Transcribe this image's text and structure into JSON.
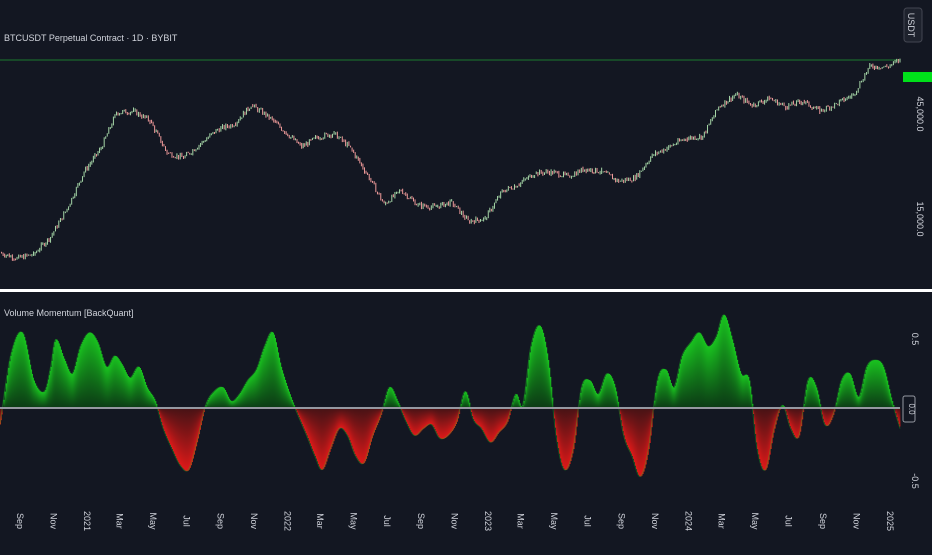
{
  "colors": {
    "background": "#131722",
    "candle_up": "#a5d6a7",
    "candle_down": "#ef9a9a",
    "osc_up": "#19c21f",
    "osc_down": "#e01919",
    "zero_line": "#9598a1",
    "price_line": "#1b7a2e",
    "text": "#d1d4dc",
    "separator": "#ffffff",
    "price_box": "#00e01a"
  },
  "price_pane": {
    "title": "BTCUSDT Perpetual Contract · 1D · BYBIT",
    "currency_badge": "USDT",
    "y_tick_labels": [
      "45,000.0",
      "15,000.0"
    ],
    "scale": "log"
  },
  "oscillator_pane": {
    "title": "Volume Momentum [BackQuant]",
    "y_tick_labels": [
      "0.5",
      "-0.5"
    ],
    "zero_badge": "0.0"
  },
  "chart_data": [
    {
      "type": "line",
      "pane": "price",
      "scale": "log",
      "series": [
        {
          "x": [
            "2020-08-01",
            "2020-09-01",
            "2020-10-01",
            "2020-11-01",
            "2020-12-01",
            "2021-01-01",
            "2021-02-01",
            "2021-03-01",
            "2021-04-01",
            "2021-05-01",
            "2021-06-01",
            "2021-07-01",
            "2021-08-01",
            "2021-09-01",
            "2021-10-01",
            "2021-11-01",
            "2021-12-01",
            "2022-01-01",
            "2022-02-01",
            "2022-03-01",
            "2022-04-01",
            "2022-05-01",
            "2022-06-01",
            "2022-07-01",
            "2022-08-01",
            "2022-09-01",
            "2022-10-01",
            "2022-11-01",
            "2022-12-01",
            "2023-01-01",
            "2023-02-01",
            "2023-03-01",
            "2023-04-01",
            "2023-05-01",
            "2023-06-01",
            "2023-07-01",
            "2023-08-01",
            "2023-09-01",
            "2023-10-01",
            "2023-11-01",
            "2023-12-01",
            "2024-01-01",
            "2024-02-01",
            "2024-03-01",
            "2024-04-01",
            "2024-05-01",
            "2024-06-01",
            "2024-07-01",
            "2024-08-01",
            "2024-09-01",
            "2024-10-01",
            "2024-11-01",
            "2024-12-01",
            "2025-01-01",
            "2025-01-25"
          ],
          "values": [
            11500,
            10800,
            11300,
            13800,
            19000,
            29000,
            38000,
            57000,
            58000,
            52000,
            36000,
            34000,
            40000,
            47000,
            50000,
            62000,
            55000,
            46000,
            38500,
            43000,
            45000,
            38000,
            28000,
            20000,
            23500,
            19800,
            19400,
            20500,
            16500,
            17000,
            23200,
            25000,
            28500,
            29000,
            27500,
            30000,
            29100,
            26000,
            27000,
            35000,
            38500,
            42500,
            43500,
            61000,
            70000,
            62000,
            67000,
            61000,
            65000,
            58000,
            63000,
            70000,
            97000,
            96000,
            104000
          ]
        }
      ],
      "reference_line": 104000
    },
    {
      "type": "area",
      "title": "Volume Momentum [BackQuant]",
      "ylim": [
        -0.5,
        0.5
      ],
      "zero_line": 0,
      "series": [
        {
          "x": [
            "2020-08-01",
            "2020-08-20",
            "2020-09-10",
            "2020-10-01",
            "2020-10-20",
            "2020-11-01",
            "2020-11-10",
            "2020-11-25",
            "2020-12-10",
            "2020-12-25",
            "2021-01-10",
            "2021-01-25",
            "2021-02-10",
            "2021-02-25",
            "2021-03-10",
            "2021-03-25",
            "2021-04-10",
            "2021-04-25",
            "2021-05-10",
            "2021-05-25",
            "2021-06-10",
            "2021-06-25",
            "2021-07-10",
            "2021-07-25",
            "2021-08-10",
            "2021-08-25",
            "2021-09-10",
            "2021-09-25",
            "2021-10-10",
            "2021-10-25",
            "2021-11-10",
            "2021-11-25",
            "2021-12-10",
            "2021-12-25",
            "2022-01-10",
            "2022-01-25",
            "2022-02-10",
            "2022-02-25",
            "2022-03-10",
            "2022-03-25",
            "2022-04-10",
            "2022-04-25",
            "2022-05-10",
            "2022-05-25",
            "2022-06-10",
            "2022-06-25",
            "2022-07-10",
            "2022-07-25",
            "2022-08-10",
            "2022-08-25",
            "2022-09-10",
            "2022-09-25",
            "2022-10-10",
            "2022-10-25",
            "2022-11-10",
            "2022-11-25",
            "2022-12-10",
            "2022-12-25",
            "2023-01-10",
            "2023-01-25",
            "2023-02-10",
            "2023-02-25",
            "2023-03-10",
            "2023-03-25",
            "2023-04-10",
            "2023-04-25",
            "2023-05-10",
            "2023-05-25",
            "2023-06-10",
            "2023-06-25",
            "2023-07-10",
            "2023-07-25",
            "2023-08-10",
            "2023-08-25",
            "2023-09-10",
            "2023-09-25",
            "2023-10-10",
            "2023-10-25",
            "2023-11-10",
            "2023-11-25",
            "2023-12-10",
            "2023-12-25",
            "2024-01-10",
            "2024-01-25",
            "2024-02-10",
            "2024-02-25",
            "2024-03-10",
            "2024-03-25",
            "2024-04-10",
            "2024-04-25",
            "2024-05-10",
            "2024-05-25",
            "2024-06-10",
            "2024-06-25",
            "2024-07-10",
            "2024-07-25",
            "2024-08-10",
            "2024-08-25",
            "2024-09-10",
            "2024-09-25",
            "2024-10-10",
            "2024-10-25",
            "2024-11-10",
            "2024-11-25",
            "2024-12-10",
            "2024-12-25",
            "2025-01-10",
            "2025-01-25"
          ],
          "values": [
            -0.12,
            0.38,
            0.55,
            0.2,
            0.12,
            0.3,
            0.5,
            0.36,
            0.25,
            0.45,
            0.55,
            0.48,
            0.3,
            0.38,
            0.32,
            0.22,
            0.3,
            0.15,
            0.05,
            -0.15,
            -0.3,
            -0.42,
            -0.45,
            -0.25,
            0.02,
            0.12,
            0.15,
            0.05,
            0.1,
            0.2,
            0.28,
            0.45,
            0.55,
            0.3,
            0.1,
            -0.05,
            -0.2,
            -0.35,
            -0.45,
            -0.3,
            -0.15,
            -0.2,
            -0.35,
            -0.4,
            -0.2,
            -0.05,
            0.15,
            0.05,
            -0.1,
            -0.2,
            -0.15,
            -0.12,
            -0.22,
            -0.2,
            -0.1,
            0.12,
            -0.08,
            -0.15,
            -0.25,
            -0.18,
            -0.1,
            0.1,
            0.02,
            0.45,
            0.6,
            0.35,
            -0.2,
            -0.45,
            -0.3,
            0.15,
            0.2,
            0.1,
            0.25,
            0.15,
            -0.2,
            -0.35,
            -0.5,
            -0.3,
            0.2,
            0.28,
            0.15,
            0.38,
            0.48,
            0.55,
            0.45,
            0.52,
            0.68,
            0.5,
            0.25,
            0.2,
            -0.3,
            -0.45,
            -0.15,
            0.02,
            -0.15,
            -0.2,
            0.2,
            0.15,
            -0.12,
            -0.05,
            0.2,
            0.25,
            0.08,
            0.3,
            0.35,
            0.3,
            0.05,
            -0.15
          ]
        }
      ]
    }
  ],
  "x_axis": {
    "tick_labels": [
      "Sep",
      "Nov",
      "2021",
      "Mar",
      "May",
      "Jul",
      "Sep",
      "Nov",
      "2022",
      "Mar",
      "May",
      "Jul",
      "Sep",
      "Nov",
      "2023",
      "Mar",
      "May",
      "Jul",
      "Sep",
      "Nov",
      "2024",
      "Mar",
      "May",
      "Jul",
      "Sep",
      "Nov",
      "2025"
    ],
    "tick_dates": [
      "2020-09-01",
      "2020-11-01",
      "2021-01-01",
      "2021-03-01",
      "2021-05-01",
      "2021-07-01",
      "2021-09-01",
      "2021-11-01",
      "2022-01-01",
      "2022-03-01",
      "2022-05-01",
      "2022-07-01",
      "2022-09-01",
      "2022-11-01",
      "2023-01-01",
      "2023-03-01",
      "2023-05-01",
      "2023-07-01",
      "2023-09-01",
      "2023-11-01",
      "2024-01-01",
      "2024-03-01",
      "2024-05-01",
      "2024-07-01",
      "2024-09-01",
      "2024-11-01",
      "2025-01-01"
    ]
  }
}
